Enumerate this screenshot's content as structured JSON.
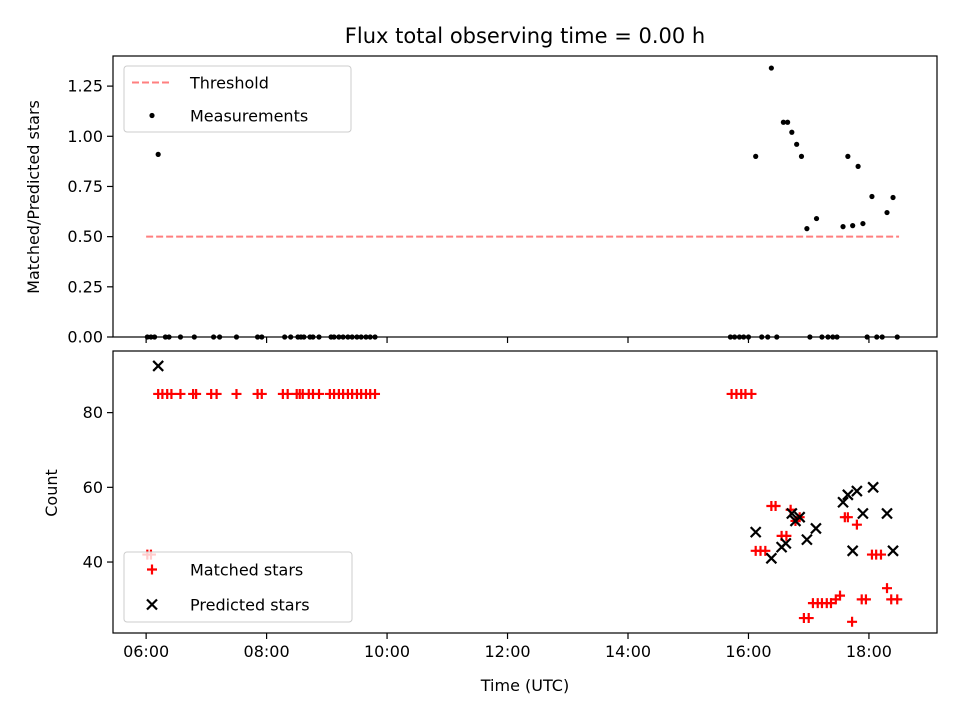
{
  "chart_data": [
    {
      "type": "scatter",
      "title": "Flux total observing time = 0.00 h",
      "xlabel": "",
      "ylabel": "Matched/Predicted stars",
      "xlim": [
        5.45,
        19.13
      ],
      "ylim": [
        0.0,
        1.4
      ],
      "yticks": [
        0.0,
        0.25,
        0.5,
        0.75,
        1.0,
        1.25
      ],
      "ytick_labels": [
        "0.00",
        "0.25",
        "0.50",
        "0.75",
        "1.00",
        "1.25"
      ],
      "xticks": [
        6,
        8,
        10,
        12,
        14,
        16,
        18
      ],
      "grid": false,
      "legend": "top-left",
      "series": [
        {
          "name": "Threshold",
          "kind": "line",
          "style": "dashed",
          "color": "#ff7f7f",
          "x": [
            6.0,
            18.5
          ],
          "y": [
            0.5,
            0.5
          ]
        },
        {
          "name": "Measurements",
          "kind": "scatter",
          "marker": "dot",
          "color": "#000000",
          "x": [
            6.02,
            6.08,
            6.14,
            6.2,
            6.32,
            6.38,
            6.57,
            6.8,
            7.12,
            7.22,
            7.5,
            7.85,
            7.92,
            8.3,
            8.4,
            8.52,
            8.57,
            8.62,
            8.72,
            8.77,
            8.87,
            9.07,
            9.12,
            9.2,
            9.27,
            9.35,
            9.42,
            9.5,
            9.57,
            9.65,
            9.72,
            9.8,
            15.7,
            15.77,
            15.85,
            15.92,
            16.0,
            16.12,
            16.22,
            16.32,
            16.38,
            16.47,
            16.58,
            16.65,
            16.72,
            16.8,
            16.88,
            16.97,
            17.02,
            17.13,
            17.22,
            17.32,
            17.4,
            17.47,
            17.57,
            17.65,
            17.73,
            17.82,
            17.9,
            17.97,
            18.05,
            18.13,
            18.22,
            18.3,
            18.4,
            18.47
          ],
          "y": [
            0,
            0,
            0,
            0.91,
            0,
            0,
            0,
            0,
            0,
            0,
            0,
            0,
            0,
            0,
            0,
            0,
            0,
            0,
            0,
            0,
            0,
            0,
            0,
            0,
            0,
            0,
            0,
            0,
            0,
            0,
            0,
            0,
            0,
            0,
            0,
            0,
            0,
            0.9,
            0,
            0,
            1.34,
            0,
            1.07,
            1.07,
            1.02,
            0.96,
            0.9,
            0.54,
            0,
            0.59,
            0,
            0,
            0,
            0,
            0.55,
            0.9,
            0.555,
            0.85,
            0.565,
            0,
            0.7,
            0,
            0,
            0.62,
            0.695,
            0
          ]
        }
      ]
    },
    {
      "type": "scatter",
      "title": "",
      "xlabel": "Time (UTC)",
      "ylabel": "Count",
      "xlim": [
        5.45,
        19.13
      ],
      "ylim": [
        21,
        96.5
      ],
      "yticks": [
        40,
        60,
        80
      ],
      "ytick_labels": [
        "40",
        "60",
        "80"
      ],
      "xticks": [
        6,
        8,
        10,
        12,
        14,
        16,
        18
      ],
      "xtick_labels": [
        "06:00",
        "08:00",
        "10:00",
        "12:00",
        "14:00",
        "16:00",
        "18:00"
      ],
      "grid": false,
      "legend": "bottom-left",
      "series": [
        {
          "name": "Matched stars",
          "kind": "scatter",
          "marker": "plus",
          "color": "#ff0000",
          "x": [
            6.02,
            6.08,
            6.2,
            6.27,
            6.35,
            6.42,
            6.57,
            6.78,
            6.83,
            7.08,
            7.17,
            7.5,
            7.85,
            7.92,
            8.27,
            8.35,
            8.5,
            8.55,
            8.6,
            8.7,
            8.77,
            8.87,
            9.05,
            9.12,
            9.2,
            9.27,
            9.35,
            9.42,
            9.5,
            9.57,
            9.65,
            9.72,
            9.8,
            15.72,
            15.8,
            15.88,
            15.95,
            16.05,
            16.12,
            16.2,
            16.28,
            16.38,
            16.45,
            16.55,
            16.63,
            16.7,
            16.78,
            16.85,
            16.92,
            17.0,
            17.07,
            17.15,
            17.22,
            17.3,
            17.37,
            17.45,
            17.52,
            17.6,
            17.65,
            17.72,
            17.8,
            17.88,
            17.95,
            18.05,
            18.12,
            18.2,
            18.3,
            18.37,
            18.47
          ],
          "y": [
            42,
            42,
            85,
            85,
            85,
            85,
            85,
            85,
            85,
            85,
            85,
            85,
            85,
            85,
            85,
            85,
            85,
            85,
            85,
            85,
            85,
            85,
            85,
            85,
            85,
            85,
            85,
            85,
            85,
            85,
            85,
            85,
            85,
            85,
            85,
            85,
            85,
            85,
            43,
            43,
            43,
            55,
            55,
            47,
            47,
            54,
            51,
            52,
            25,
            25,
            29,
            29,
            29,
            29,
            29,
            30,
            31,
            52,
            52,
            24,
            50,
            30,
            30,
            42,
            42,
            42,
            33,
            30,
            30
          ]
        },
        {
          "name": "Predicted stars",
          "kind": "scatter",
          "marker": "x",
          "color": "#000000",
          "x": [
            6.2,
            16.12,
            16.38,
            16.55,
            16.62,
            16.72,
            16.78,
            16.85,
            16.97,
            17.12,
            17.57,
            17.65,
            17.73,
            17.8,
            17.9,
            18.07,
            18.3,
            18.4
          ],
          "y": [
            92.5,
            48,
            41,
            44,
            45,
            53,
            51,
            52,
            46,
            49,
            56,
            58,
            43,
            59,
            53,
            60,
            53,
            43
          ]
        }
      ]
    }
  ]
}
